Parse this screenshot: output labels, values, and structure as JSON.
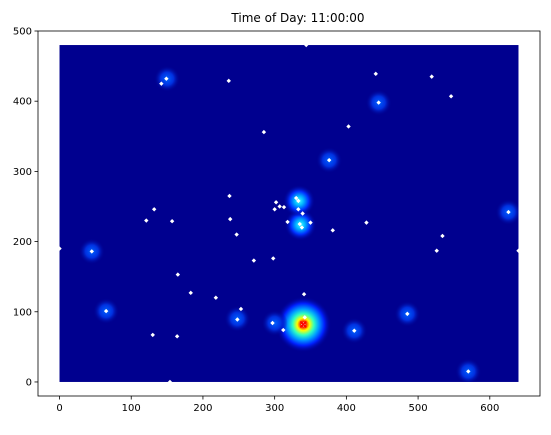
{
  "chart_data": {
    "type": "heatmap",
    "title": "Time of Day: 11:00:00",
    "xlabel": "",
    "ylabel": "",
    "xlim": [
      -30,
      670
    ],
    "ylim": [
      -20,
      500
    ],
    "x_ticks": [
      0,
      100,
      200,
      300,
      400,
      500,
      600
    ],
    "y_ticks": [
      0,
      100,
      200,
      300,
      400,
      500
    ],
    "field_extent": {
      "x": [
        0,
        640
      ],
      "y": [
        0,
        480
      ]
    },
    "colormap": "jet",
    "colors": {
      "background": "#00008f",
      "point": "#ffffff",
      "hotspot_marker": "#ff0000"
    },
    "hotspots": [
      {
        "x": 340,
        "y": 82,
        "intensity": 1.0
      },
      {
        "x": 336,
        "y": 224,
        "intensity": 0.55
      },
      {
        "x": 334,
        "y": 258,
        "intensity": 0.45
      },
      {
        "x": 45,
        "y": 186,
        "intensity": 0.3
      },
      {
        "x": 65,
        "y": 101,
        "intensity": 0.3
      },
      {
        "x": 485,
        "y": 97,
        "intensity": 0.3
      },
      {
        "x": 626,
        "y": 242,
        "intensity": 0.3
      },
      {
        "x": 248,
        "y": 90,
        "intensity": 0.25
      },
      {
        "x": 300,
        "y": 84,
        "intensity": 0.22
      },
      {
        "x": 150,
        "y": 432,
        "intensity": 0.25
      },
      {
        "x": 445,
        "y": 398,
        "intensity": 0.22
      },
      {
        "x": 376,
        "y": 316,
        "intensity": 0.22
      },
      {
        "x": 570,
        "y": 15,
        "intensity": 0.22
      },
      {
        "x": 411,
        "y": 73,
        "intensity": 0.18
      }
    ],
    "points": [
      [
        0,
        190
      ],
      [
        154,
        0
      ],
      [
        344,
        480
      ],
      [
        640,
        187
      ],
      [
        45,
        186
      ],
      [
        65,
        101
      ],
      [
        130,
        67
      ],
      [
        132,
        246
      ],
      [
        121,
        230
      ],
      [
        157,
        229
      ],
      [
        142,
        425
      ],
      [
        149,
        432
      ],
      [
        164,
        65
      ],
      [
        165,
        153
      ],
      [
        183,
        127
      ],
      [
        218,
        120
      ],
      [
        236,
        429
      ],
      [
        237,
        265
      ],
      [
        238,
        232
      ],
      [
        247,
        210
      ],
      [
        248,
        89
      ],
      [
        253,
        104
      ],
      [
        271,
        173
      ],
      [
        285,
        356
      ],
      [
        297,
        84
      ],
      [
        298,
        176
      ],
      [
        300,
        246
      ],
      [
        302,
        256
      ],
      [
        307,
        250
      ],
      [
        313,
        249
      ],
      [
        312,
        74
      ],
      [
        318,
        228
      ],
      [
        330,
        262
      ],
      [
        333,
        258
      ],
      [
        333,
        246
      ],
      [
        335,
        225
      ],
      [
        338,
        220
      ],
      [
        339,
        240
      ],
      [
        341,
        125
      ],
      [
        340,
        82
      ],
      [
        342,
        92
      ],
      [
        350,
        227
      ],
      [
        376,
        316
      ],
      [
        381,
        216
      ],
      [
        403,
        364
      ],
      [
        411,
        73
      ],
      [
        428,
        227
      ],
      [
        441,
        439
      ],
      [
        445,
        398
      ],
      [
        485,
        97
      ],
      [
        519,
        435
      ],
      [
        526,
        187
      ],
      [
        534,
        208
      ],
      [
        546,
        407
      ],
      [
        570,
        15
      ],
      [
        626,
        242
      ]
    ]
  }
}
